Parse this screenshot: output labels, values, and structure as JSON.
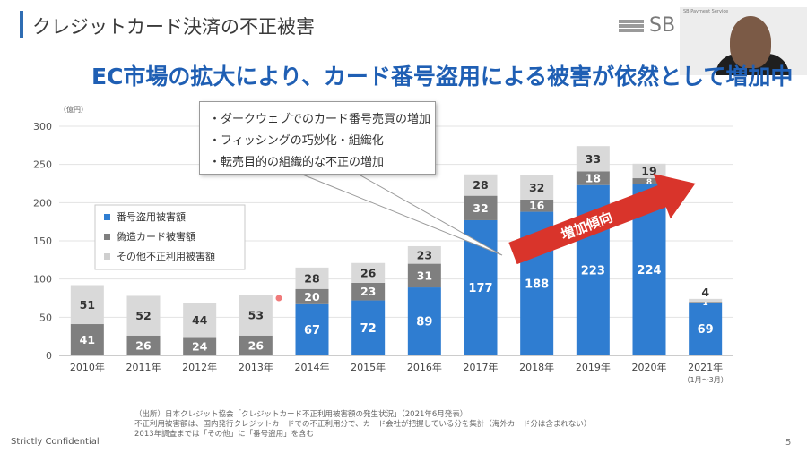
{
  "slide": {
    "title": "クレジットカード決済の不正被害",
    "logo": "SB Pa",
    "headline": "EC市場の拡大により、カード番号盗用による被害が依然として増加中",
    "footer_left": "Strictly Confidential",
    "page_number": "5",
    "webcam_label": "SB Payment Service"
  },
  "callout": {
    "lines": [
      "・ダークウェブでのカード番号売買の増加",
      "・フィッシングの巧妙化・組織化",
      "・転売目的の組織的な不正の増加"
    ]
  },
  "trend_arrow": {
    "label": "増加傾向",
    "color": "#d9342b"
  },
  "source": {
    "lines": [
      "（出所）日本クレジット協会「クレジットカード不正利用被害額の発生状況」（2021年6月発表）",
      "不正利用被害額は、国内発行クレジットカードでの不正利用分で、カード会社が把握している分を集計（海外カード分は含まれない）",
      "2013年調査までは「その他」に「番号盗用」を含む"
    ]
  },
  "chart_data": {
    "type": "bar",
    "stacked": true,
    "unit_label": "（億円）",
    "categories": [
      "2010年",
      "2011年",
      "2012年",
      "2013年",
      "2014年",
      "2015年",
      "2016年",
      "2017年",
      "2018年",
      "2019年",
      "2020年",
      "2021年"
    ],
    "category_note": "（1月〜3月）",
    "ylim": [
      0,
      300
    ],
    "yticks": [
      0,
      50,
      100,
      150,
      200,
      250,
      300
    ],
    "grid": true,
    "legend_position": "left",
    "series": [
      {
        "name": "番号盗用被害額",
        "color": "#2f7dd1",
        "label_color": "#ffffff",
        "values": [
          0,
          0,
          0,
          0,
          67,
          72,
          89,
          177,
          188,
          223,
          224,
          69
        ]
      },
      {
        "name": "偽造カード被害額",
        "color": "#7f7f7f",
        "label_color": "#ffffff",
        "values": [
          41,
          26,
          24,
          26,
          20,
          23,
          31,
          32,
          16,
          18,
          8,
          1
        ]
      },
      {
        "name": "その他不正利用被害額",
        "color": "#d9d9d9",
        "label_color": "#333333",
        "values": [
          51,
          52,
          44,
          53,
          28,
          26,
          23,
          28,
          32,
          33,
          19,
          4
        ]
      }
    ]
  }
}
